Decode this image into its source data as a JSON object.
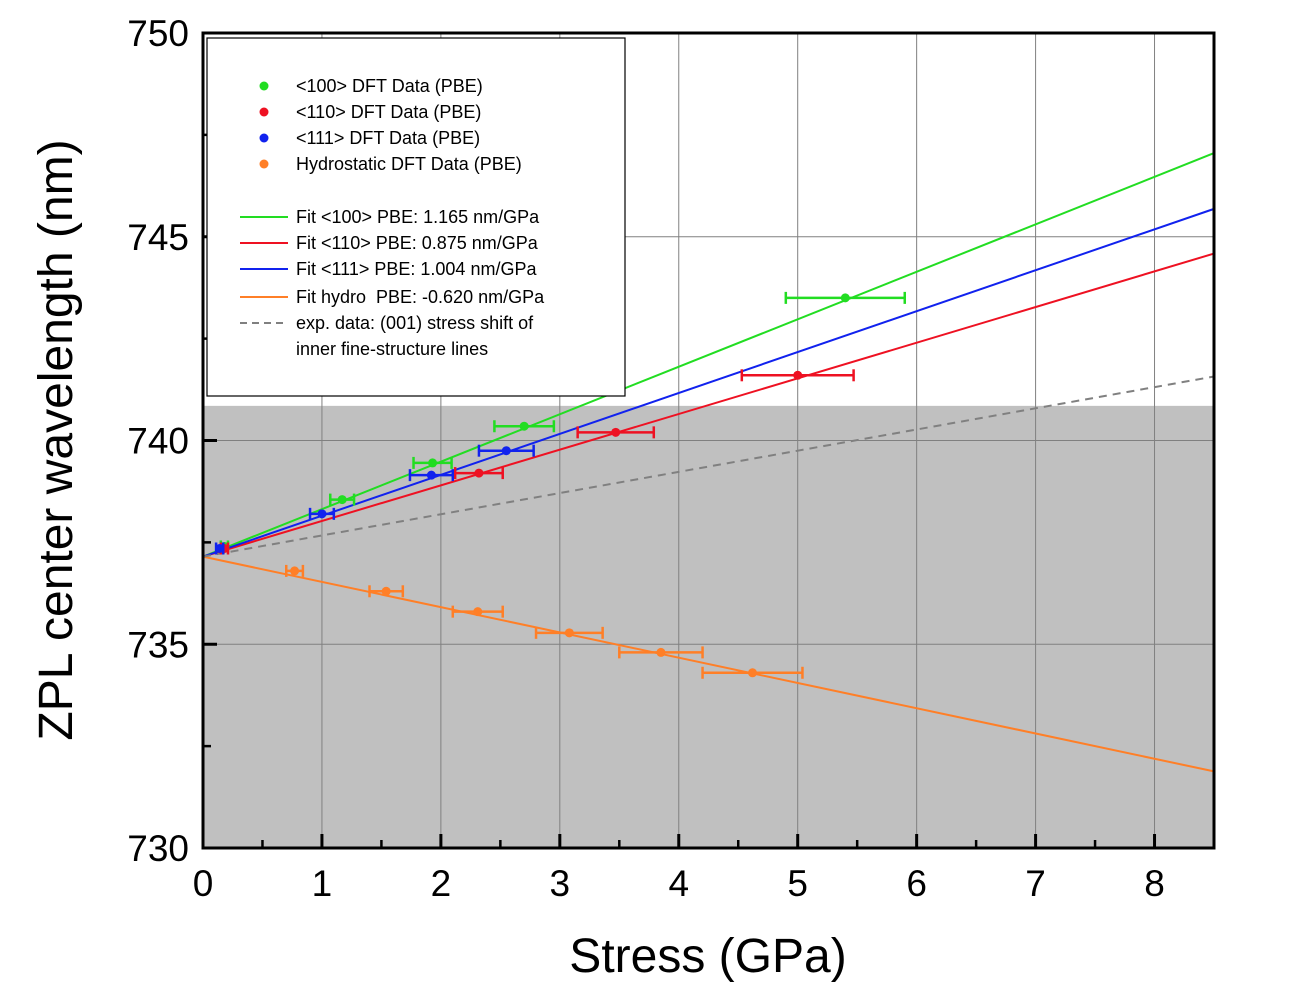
{
  "chart_data": {
    "type": "scatter",
    "xlabel": "Stress (GPa)",
    "ylabel": "ZPL center wavelength (nm)",
    "xlim": [
      0,
      8.5
    ],
    "ylim": [
      730,
      750
    ],
    "xticks": [
      "0",
      "1",
      "2",
      "3",
      "4",
      "5",
      "6",
      "7",
      "8"
    ],
    "yticks": [
      "730",
      "735",
      "740",
      "745",
      "750"
    ],
    "grid": true,
    "shaded_region": {
      "y_from": 730,
      "y_to": 740.85,
      "color": "#c0c0c0"
    },
    "legend_position": "top-left",
    "series": [
      {
        "name": "<100> DFT Data (PBE)",
        "color": "#22dd22",
        "points": [
          {
            "x": 0.18,
            "y": 737.4,
            "xerr": 0.03
          },
          {
            "x": 1.17,
            "y": 738.55,
            "xerr": 0.1
          },
          {
            "x": 1.93,
            "y": 739.45,
            "xerr": 0.16
          },
          {
            "x": 2.7,
            "y": 740.35,
            "xerr": 0.25
          },
          {
            "x": 5.4,
            "y": 743.5,
            "xerr": 0.5
          }
        ]
      },
      {
        "name": "<110> DFT Data (PBE)",
        "color": "#ee1122",
        "points": [
          {
            "x": 0.18,
            "y": 737.35,
            "xerr": 0.03
          },
          {
            "x": 2.32,
            "y": 739.2,
            "xerr": 0.2
          },
          {
            "x": 3.47,
            "y": 740.2,
            "xerr": 0.32
          },
          {
            "x": 5.0,
            "y": 741.6,
            "xerr": 0.47
          }
        ]
      },
      {
        "name": "<111> DFT Data (PBE)",
        "color": "#1122ee",
        "points": [
          {
            "x": 0.14,
            "y": 737.35,
            "xerr": 0.03
          },
          {
            "x": 1.0,
            "y": 738.2,
            "xerr": 0.1
          },
          {
            "x": 1.92,
            "y": 739.15,
            "xerr": 0.18
          },
          {
            "x": 2.55,
            "y": 739.75,
            "xerr": 0.23
          }
        ]
      },
      {
        "name": "Hydrostatic DFT Data (PBE)",
        "color": "#ff7f27",
        "points": [
          {
            "x": 0.77,
            "y": 736.8,
            "xerr": 0.07
          },
          {
            "x": 1.54,
            "y": 736.3,
            "xerr": 0.14
          },
          {
            "x": 2.31,
            "y": 735.8,
            "xerr": 0.21
          },
          {
            "x": 3.08,
            "y": 735.28,
            "xerr": 0.28
          },
          {
            "x": 3.85,
            "y": 734.8,
            "xerr": 0.35
          },
          {
            "x": 4.62,
            "y": 734.3,
            "xerr": 0.42
          }
        ]
      }
    ],
    "fits": [
      {
        "name": "Fit <100> PBE: 1.165 nm/GPa",
        "color": "#22dd22",
        "intercept": 737.15,
        "slope": 1.165,
        "dash": false
      },
      {
        "name": "Fit <110> PBE: 0.875 nm/GPa",
        "color": "#ee1122",
        "intercept": 737.15,
        "slope": 0.875,
        "dash": false
      },
      {
        "name": "Fit <111> PBE: 1.004 nm/GPa",
        "color": "#1122ee",
        "intercept": 737.15,
        "slope": 1.004,
        "dash": false
      },
      {
        "name": "Fit hydro  PBE: -0.620 nm/GPa",
        "color": "#ff7f27",
        "intercept": 737.15,
        "slope": -0.62,
        "dash": false
      },
      {
        "name": "exp. data: (001) stress shift of",
        "name2": "inner fine-structure lines",
        "color": "#808080",
        "intercept": 737.15,
        "slope": 0.52,
        "dash": true
      }
    ]
  }
}
